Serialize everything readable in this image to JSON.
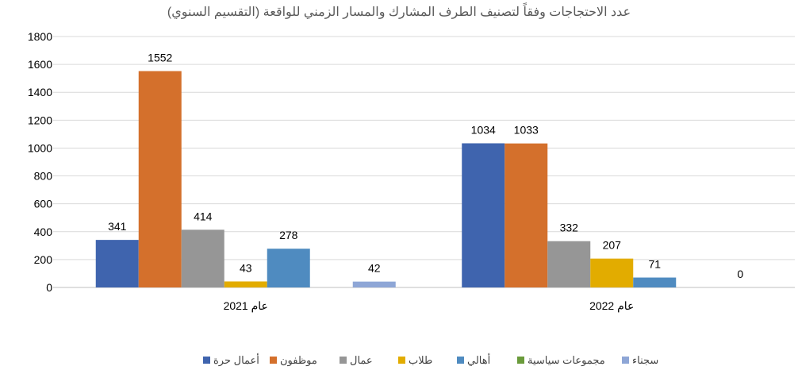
{
  "chart_data": {
    "type": "bar",
    "title": "عدد الاحتجاجات وفقاً لتصنيف الطرف المشارك والمسار الزمني للواقعة (التقسيم السنوي)",
    "categories": [
      "عام 2021",
      "عام 2022"
    ],
    "ylim": [
      0,
      1800
    ],
    "yticks": [
      0,
      200,
      400,
      600,
      800,
      1000,
      1200,
      1400,
      1600,
      1800
    ],
    "grid": true,
    "legend_position": "bottom",
    "series": [
      {
        "name": "أعمال حرة",
        "color": "#3f64ae",
        "values": [
          341,
          1034
        ]
      },
      {
        "name": "موظفون",
        "color": "#d4702c",
        "values": [
          1552,
          1033
        ]
      },
      {
        "name": "عمال",
        "color": "#969696",
        "values": [
          414,
          332
        ]
      },
      {
        "name": "طلاب",
        "color": "#e2ac00",
        "values": [
          43,
          207
        ]
      },
      {
        "name": "أهالي",
        "color": "#4f8bc0",
        "values": [
          278,
          71
        ]
      },
      {
        "name": "مجموعات سياسية",
        "color": "#6a9b3b",
        "values": [
          null,
          null
        ]
      },
      {
        "name": "سجناء",
        "color": "#8ea6d6",
        "values": [
          42,
          0
        ]
      }
    ]
  }
}
